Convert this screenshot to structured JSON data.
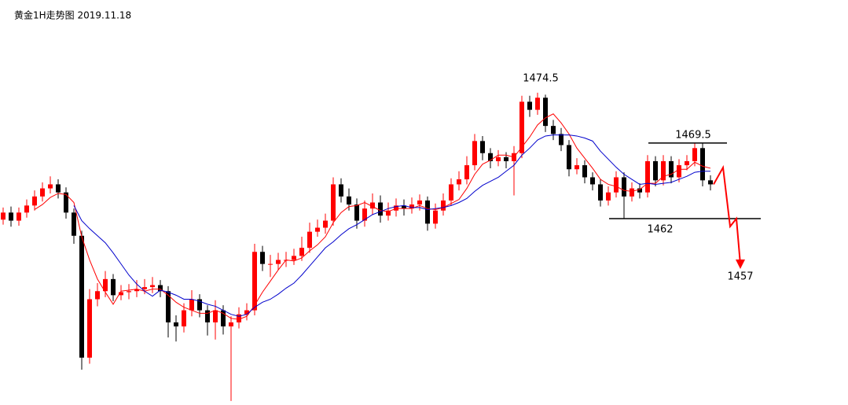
{
  "chart_data": {
    "type": "candlestick",
    "title": "黄金1H走势图 2019.11.18",
    "ylim": [
      1443.5,
      1483.7
    ],
    "up_color": "#ff0000",
    "down_color": "#000000",
    "ohlc": [
      [
        1461.9,
        1463.1,
        1461.4,
        1462.6
      ],
      [
        1462.6,
        1463.2,
        1461.2,
        1461.8
      ],
      [
        1461.8,
        1463.1,
        1461.3,
        1462.6
      ],
      [
        1462.6,
        1463.9,
        1462.1,
        1463.3
      ],
      [
        1463.3,
        1464.8,
        1462.8,
        1464.2
      ],
      [
        1464.2,
        1465.6,
        1463.7,
        1465.0
      ],
      [
        1465.0,
        1466.2,
        1464.5,
        1465.4
      ],
      [
        1465.4,
        1465.9,
        1464.0,
        1464.6
      ],
      [
        1464.6,
        1465.1,
        1462.0,
        1462.6
      ],
      [
        1462.6,
        1463.0,
        1459.5,
        1460.3
      ],
      [
        1460.3,
        1460.8,
        1447.0,
        1448.2
      ],
      [
        1448.2,
        1455.0,
        1447.6,
        1454.0
      ],
      [
        1454.0,
        1455.6,
        1453.3,
        1454.8
      ],
      [
        1454.8,
        1456.8,
        1454.2,
        1456.0
      ],
      [
        1456.0,
        1456.5,
        1453.8,
        1454.4
      ],
      [
        1454.4,
        1455.4,
        1453.9,
        1454.7
      ],
      [
        1454.7,
        1455.5,
        1454.0,
        1454.8
      ],
      [
        1454.8,
        1455.9,
        1454.2,
        1455.0
      ],
      [
        1455.0,
        1456.0,
        1454.5,
        1455.2
      ],
      [
        1455.2,
        1456.2,
        1454.6,
        1455.4
      ],
      [
        1455.4,
        1455.9,
        1454.2,
        1454.8
      ],
      [
        1454.8,
        1455.3,
        1450.2,
        1451.7
      ],
      [
        1451.7,
        1452.4,
        1449.8,
        1451.3
      ],
      [
        1451.3,
        1453.6,
        1450.7,
        1452.9
      ],
      [
        1452.9,
        1454.9,
        1452.3,
        1454.0
      ],
      [
        1454.0,
        1454.5,
        1452.2,
        1452.9
      ],
      [
        1452.9,
        1453.4,
        1450.4,
        1451.7
      ],
      [
        1451.7,
        1453.9,
        1450.0,
        1452.9
      ],
      [
        1452.9,
        1453.4,
        1450.5,
        1451.3
      ],
      [
        1451.3,
        1452.3,
        1443.9,
        1451.7
      ],
      [
        1451.7,
        1453.2,
        1451.1,
        1452.5
      ],
      [
        1452.5,
        1453.6,
        1451.9,
        1452.9
      ],
      [
        1452.9,
        1459.5,
        1452.4,
        1458.7
      ],
      [
        1458.7,
        1459.3,
        1456.8,
        1457.5
      ],
      [
        1457.5,
        1458.4,
        1456.2,
        1457.5
      ],
      [
        1457.5,
        1458.6,
        1456.9,
        1457.9
      ],
      [
        1457.9,
        1458.7,
        1457.2,
        1457.9
      ],
      [
        1457.9,
        1459.0,
        1457.4,
        1458.3
      ],
      [
        1458.3,
        1460.2,
        1457.8,
        1459.1
      ],
      [
        1459.1,
        1461.6,
        1458.6,
        1460.7
      ],
      [
        1460.7,
        1461.9,
        1460.2,
        1461.1
      ],
      [
        1461.1,
        1462.5,
        1460.5,
        1461.8
      ],
      [
        1461.8,
        1466.1,
        1461.3,
        1465.4
      ],
      [
        1465.4,
        1466.0,
        1463.6,
        1464.2
      ],
      [
        1464.2,
        1465.0,
        1462.8,
        1463.4
      ],
      [
        1463.4,
        1464.0,
        1461.0,
        1461.8
      ],
      [
        1461.8,
        1463.8,
        1461.2,
        1463.0
      ],
      [
        1463.0,
        1464.5,
        1462.4,
        1463.6
      ],
      [
        1463.6,
        1464.3,
        1461.6,
        1462.3
      ],
      [
        1462.3,
        1463.6,
        1461.8,
        1462.8
      ],
      [
        1462.8,
        1464.0,
        1462.2,
        1463.3
      ],
      [
        1463.3,
        1463.9,
        1462.3,
        1463.0
      ],
      [
        1463.0,
        1464.1,
        1462.5,
        1463.4
      ],
      [
        1463.4,
        1464.4,
        1462.8,
        1463.8
      ],
      [
        1463.8,
        1464.2,
        1460.8,
        1461.5
      ],
      [
        1461.5,
        1463.5,
        1461.0,
        1462.8
      ],
      [
        1462.8,
        1464.5,
        1462.3,
        1463.8
      ],
      [
        1463.8,
        1466.0,
        1463.3,
        1465.4
      ],
      [
        1465.4,
        1466.7,
        1464.8,
        1465.9
      ],
      [
        1465.9,
        1468.2,
        1465.4,
        1467.3
      ],
      [
        1467.3,
        1470.4,
        1466.8,
        1469.7
      ],
      [
        1469.7,
        1470.2,
        1467.8,
        1468.5
      ],
      [
        1468.5,
        1469.0,
        1467.0,
        1467.7
      ],
      [
        1467.7,
        1468.8,
        1467.2,
        1468.1
      ],
      [
        1468.1,
        1468.6,
        1467.0,
        1467.7
      ],
      [
        1467.7,
        1469.2,
        1464.3,
        1468.5
      ],
      [
        1468.5,
        1474.2,
        1468.0,
        1473.6
      ],
      [
        1473.6,
        1474.2,
        1472.1,
        1472.8
      ],
      [
        1472.8,
        1474.5,
        1472.3,
        1474.0
      ],
      [
        1474.0,
        1474.3,
        1470.6,
        1471.2
      ],
      [
        1471.2,
        1471.8,
        1469.8,
        1470.4
      ],
      [
        1470.4,
        1471.0,
        1468.7,
        1469.3
      ],
      [
        1469.3,
        1469.8,
        1466.2,
        1466.9
      ],
      [
        1466.9,
        1468.0,
        1466.4,
        1467.3
      ],
      [
        1467.3,
        1467.8,
        1465.5,
        1466.1
      ],
      [
        1466.1,
        1466.6,
        1464.8,
        1465.4
      ],
      [
        1465.4,
        1465.9,
        1463.2,
        1463.8
      ],
      [
        1463.8,
        1465.2,
        1463.3,
        1464.6
      ],
      [
        1464.6,
        1466.7,
        1464.1,
        1466.1
      ],
      [
        1466.1,
        1466.6,
        1462.0,
        1464.2
      ],
      [
        1464.2,
        1465.6,
        1463.7,
        1465.0
      ],
      [
        1465.0,
        1465.5,
        1464.0,
        1464.6
      ],
      [
        1464.6,
        1468.3,
        1464.1,
        1467.7
      ],
      [
        1467.7,
        1468.2,
        1465.2,
        1465.8
      ],
      [
        1465.8,
        1468.3,
        1465.3,
        1467.7
      ],
      [
        1467.7,
        1468.2,
        1465.5,
        1466.1
      ],
      [
        1466.1,
        1467.9,
        1465.6,
        1467.3
      ],
      [
        1467.3,
        1468.3,
        1466.8,
        1467.7
      ],
      [
        1467.7,
        1469.5,
        1467.2,
        1469.0
      ],
      [
        1469.0,
        1469.5,
        1465.2,
        1465.8
      ],
      [
        1465.8,
        1466.3,
        1464.8,
        1465.4
      ]
    ],
    "series": [
      {
        "color": "#ff0000",
        "values": [
          null,
          null,
          null,
          null,
          1462.9,
          1463.4,
          1464.1,
          1464.5,
          1464.4,
          1463.6,
          1460.2,
          1457.9,
          1456.0,
          1454.7,
          1453.5,
          1454.8,
          1454.9,
          1455.0,
          1454.8,
          1455.0,
          1455.0,
          1454.4,
          1453.7,
          1453.2,
          1452.9,
          1452.6,
          1452.6,
          1452.9,
          1452.6,
          1452.1,
          1452.0,
          1452.3,
          1453.4,
          1454.7,
          1455.8,
          1456.9,
          1457.9,
          1457.8,
          1458.1,
          1458.8,
          1459.4,
          1460.2,
          1461.6,
          1462.6,
          1463.2,
          1463.3,
          1463.6,
          1463.2,
          1462.8,
          1462.7,
          1463.0,
          1463.0,
          1463.0,
          1463.3,
          1463.0,
          1462.9,
          1463.1,
          1463.5,
          1463.9,
          1465.0,
          1466.4,
          1467.4,
          1467.8,
          1468.3,
          1468.3,
          1468.1,
          1469.1,
          1470.1,
          1471.3,
          1472.0,
          1472.4,
          1471.5,
          1470.4,
          1469.0,
          1468.0,
          1467.0,
          1465.9,
          1465.4,
          1465.2,
          1464.8,
          1464.7,
          1464.9,
          1465.5,
          1465.5,
          1466.2,
          1466.4,
          1466.9,
          1466.9,
          1467.6,
          1467.2,
          1467.0
        ]
      },
      {
        "color": "#0000cc",
        "values": [
          null,
          null,
          null,
          null,
          null,
          null,
          null,
          null,
          null,
          1463.3,
          1461.8,
          1461.0,
          1460.3,
          1459.6,
          1458.6,
          1457.5,
          1456.4,
          1455.5,
          1454.8,
          1454.3,
          1454.9,
          1454.7,
          1454.4,
          1454.0,
          1454.0,
          1453.8,
          1453.5,
          1453.3,
          1452.9,
          1452.5,
          1452.3,
          1452.5,
          1453.2,
          1453.7,
          1454.0,
          1454.5,
          1455.1,
          1455.6,
          1456.4,
          1457.3,
          1458.2,
          1459.1,
          1459.7,
          1460.4,
          1461.0,
          1461.4,
          1461.9,
          1462.4,
          1462.7,
          1463.0,
          1463.2,
          1463.3,
          1463.1,
          1463.1,
          1462.9,
          1463.0,
          1463.1,
          1463.3,
          1463.6,
          1464.0,
          1464.7,
          1465.3,
          1465.7,
          1466.1,
          1466.7,
          1467.3,
          1468.3,
          1469.0,
          1469.8,
          1470.2,
          1470.3,
          1470.3,
          1470.3,
          1470.2,
          1470.0,
          1469.7,
          1468.7,
          1467.9,
          1467.1,
          1466.4,
          1465.9,
          1465.4,
          1465.5,
          1465.4,
          1465.5,
          1465.6,
          1465.9,
          1466.2,
          1466.6,
          1466.7,
          1466.7
        ]
      }
    ],
    "annotations": [
      1474.5,
      1469.5,
      1462,
      1457
    ]
  }
}
